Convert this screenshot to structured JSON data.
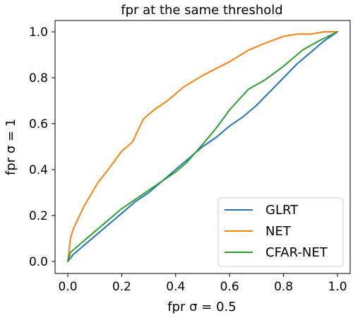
{
  "chart_data": {
    "type": "line",
    "title": "fpr at the same threshold",
    "xlabel": "fpr σ = 0.5",
    "ylabel": "fpr σ = 1",
    "xlim": [
      0.0,
      1.0
    ],
    "ylim": [
      0.0,
      1.0
    ],
    "xticks": [
      "0.0",
      "0.2",
      "0.4",
      "0.6",
      "0.8",
      "1.0"
    ],
    "yticks": [
      "0.0",
      "0.2",
      "0.4",
      "0.6",
      "0.8",
      "1.0"
    ],
    "grid": false,
    "legend_position": "lower-right",
    "series": [
      {
        "name": "GLRT",
        "color": "#1f77b4",
        "x": [
          0,
          0.02,
          0.05,
          0.1,
          0.15,
          0.2,
          0.25,
          0.3,
          0.35,
          0.4,
          0.45,
          0.5,
          0.55,
          0.6,
          0.65,
          0.7,
          0.75,
          0.8,
          0.85,
          0.9,
          0.95,
          1.0
        ],
        "y": [
          0,
          0.03,
          0.06,
          0.11,
          0.16,
          0.21,
          0.26,
          0.3,
          0.35,
          0.4,
          0.45,
          0.5,
          0.54,
          0.59,
          0.63,
          0.68,
          0.74,
          0.8,
          0.86,
          0.91,
          0.96,
          1.0
        ]
      },
      {
        "name": "NET",
        "color": "#ff7f0e",
        "x": [
          0,
          0.01,
          0.02,
          0.04,
          0.06,
          0.08,
          0.11,
          0.15,
          0.2,
          0.24,
          0.28,
          0.32,
          0.37,
          0.43,
          0.5,
          0.55,
          0.6,
          0.67,
          0.73,
          0.8,
          0.85,
          0.9,
          0.95,
          1.0
        ],
        "y": [
          0,
          0.1,
          0.14,
          0.19,
          0.24,
          0.28,
          0.34,
          0.4,
          0.48,
          0.52,
          0.62,
          0.66,
          0.7,
          0.76,
          0.81,
          0.84,
          0.87,
          0.92,
          0.95,
          0.98,
          0.99,
          0.99,
          1.0,
          1.0
        ]
      },
      {
        "name": "CFAR-NET",
        "color": "#2ca02c",
        "x": [
          0,
          0.01,
          0.03,
          0.05,
          0.08,
          0.12,
          0.16,
          0.2,
          0.25,
          0.3,
          0.35,
          0.4,
          0.44,
          0.5,
          0.55,
          0.6,
          0.67,
          0.73,
          0.8,
          0.87,
          0.93,
          1.0
        ],
        "y": [
          0,
          0.04,
          0.06,
          0.08,
          0.11,
          0.15,
          0.19,
          0.23,
          0.27,
          0.31,
          0.35,
          0.39,
          0.43,
          0.51,
          0.58,
          0.66,
          0.75,
          0.79,
          0.85,
          0.92,
          0.96,
          1.0
        ]
      }
    ]
  }
}
